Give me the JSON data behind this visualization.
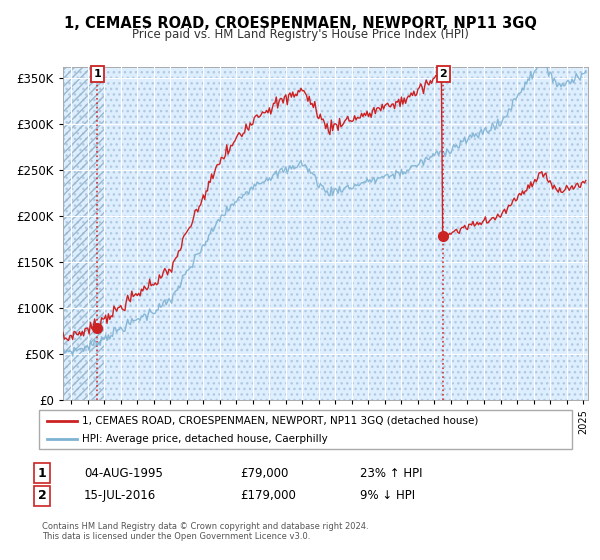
{
  "title": "1, CEMAES ROAD, CROESPENMAEN, NEWPORT, NP11 3GQ",
  "subtitle": "Price paid vs. HM Land Registry's House Price Index (HPI)",
  "ylabel_ticks": [
    0,
    50000,
    100000,
    150000,
    200000,
    250000,
    300000,
    350000
  ],
  "ylabel_labels": [
    "£0",
    "£50K",
    "£100K",
    "£150K",
    "£200K",
    "£250K",
    "£300K",
    "£350K"
  ],
  "xlim_start": 1993.5,
  "xlim_end": 2025.3,
  "ylim": [
    0,
    362000
  ],
  "point1_x": 1995.585,
  "point1_y": 79000,
  "point2_x": 2016.54,
  "point2_y": 179000,
  "point1_label": "04-AUG-1995",
  "point1_price": "£79,000",
  "point1_hpi": "23% ↑ HPI",
  "point2_label": "15-JUL-2016",
  "point2_price": "£179,000",
  "point2_hpi": "9% ↓ HPI",
  "legend_line1": "1, CEMAES ROAD, CROESPENMAEN, NEWPORT, NP11 3GQ (detached house)",
  "legend_line2": "HPI: Average price, detached house, Caerphilly",
  "footer": "Contains HM Land Registry data © Crown copyright and database right 2024.\nThis data is licensed under the Open Government Licence v3.0.",
  "line_color_red": "#cc2222",
  "line_color_blue": "#7fb3d3",
  "plot_bg": "#ddeeff",
  "hatch_color": "#b0c8e0"
}
